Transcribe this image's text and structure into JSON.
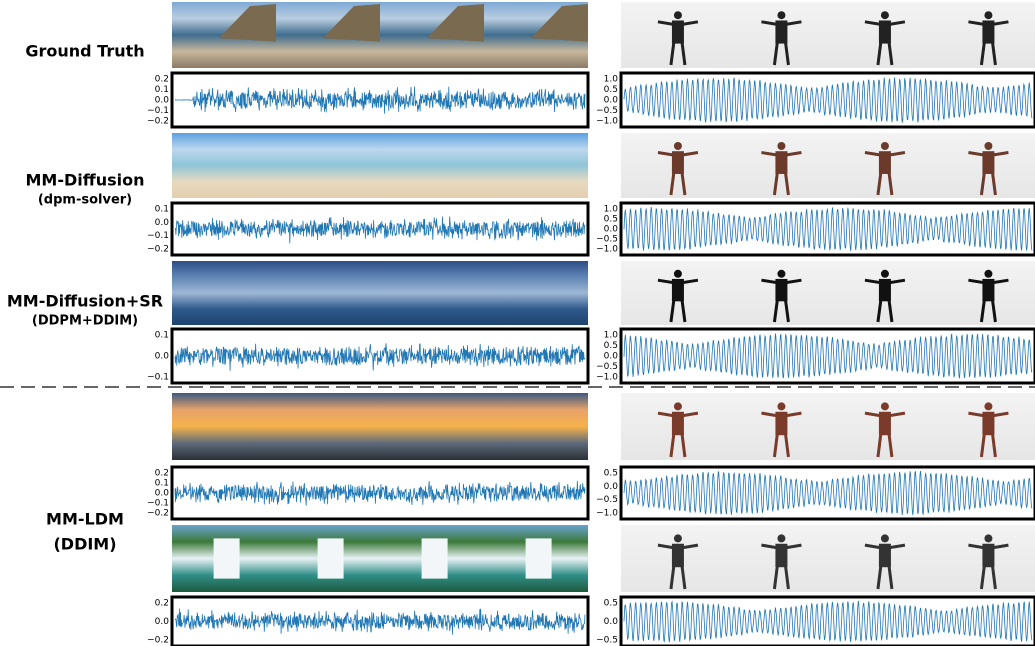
{
  "methods": [
    {
      "name": "Ground Truth"
    },
    {
      "name": "MM-Diffusion",
      "detail": "(dpm-solver)"
    },
    {
      "name": "MM-Diffusion+SR",
      "detail": "(DDPM+DDIM)"
    },
    {
      "name": "MM-LDM",
      "detail": "(DDIM)"
    }
  ],
  "panels": [
    {
      "left_ticks": [
        "0.2",
        "0.1",
        "0.0",
        "−0.1",
        "−0.2"
      ],
      "right_ticks": [
        "1.0",
        "0.5",
        "0.0",
        "−0.5",
        "−1.0"
      ]
    },
    {
      "left_ticks": [
        "0.1",
        "0.0",
        "−0.1",
        "−0.2"
      ],
      "right_ticks": [
        "1.0",
        "0.5",
        "0.0",
        "−0.5",
        "−1.0"
      ]
    },
    {
      "left_ticks": [
        "0.1",
        "0.0",
        "−0.1"
      ],
      "right_ticks": [
        "1.0",
        "0.5",
        "0.0",
        "−0.5",
        "−1.0"
      ]
    },
    {
      "left_ticks": [
        "0.2",
        "0.1",
        "0.0",
        "−0.1",
        "−0.2"
      ],
      "right_ticks": [
        "0.5",
        "0.0",
        "−0.5",
        "−1.0"
      ]
    },
    {
      "left_ticks": [
        "0.2",
        "0.0",
        "−0.2"
      ],
      "right_ticks": [
        "0.5",
        "0.0",
        "−0.5"
      ]
    }
  ]
}
